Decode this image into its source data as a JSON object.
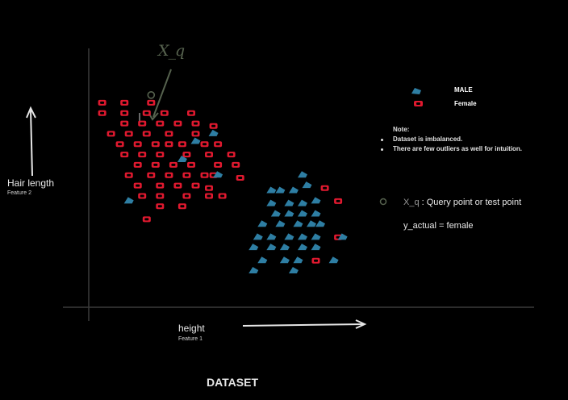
{
  "chart_data": {
    "type": "scatter",
    "title": "DATASET",
    "xlabel": "height",
    "xlabel_sub": "Feature 1",
    "ylabel": "Hair length",
    "ylabel_sub": "Feature 2",
    "legend": [
      {
        "name": "MALE",
        "marker": "triangle",
        "color": "#2e7ea3"
      },
      {
        "name": "Female",
        "marker": "rounded-square",
        "color": "#e0192f"
      }
    ],
    "legend_position": "top-right",
    "grid": false,
    "xlim": [
      0,
      100
    ],
    "ylim": [
      0,
      100
    ],
    "series": [
      {
        "name": "Female",
        "color": "#e0192f",
        "points": [
          [
            3,
            79
          ],
          [
            8,
            79
          ],
          [
            14,
            79
          ],
          [
            3,
            75
          ],
          [
            8,
            75
          ],
          [
            13,
            75
          ],
          [
            17,
            75
          ],
          [
            23,
            75
          ],
          [
            8,
            71
          ],
          [
            12,
            71
          ],
          [
            16,
            71
          ],
          [
            20,
            71
          ],
          [
            24,
            71
          ],
          [
            28,
            70
          ],
          [
            5,
            67
          ],
          [
            9,
            67
          ],
          [
            13,
            67
          ],
          [
            18,
            67
          ],
          [
            24,
            67
          ],
          [
            7,
            63
          ],
          [
            11,
            63
          ],
          [
            15,
            63
          ],
          [
            18,
            63
          ],
          [
            21,
            63
          ],
          [
            26,
            63
          ],
          [
            29,
            63
          ],
          [
            8,
            59
          ],
          [
            12,
            59
          ],
          [
            16,
            59
          ],
          [
            22,
            59
          ],
          [
            27,
            59
          ],
          [
            32,
            59
          ],
          [
            11,
            55
          ],
          [
            15,
            55
          ],
          [
            19,
            55
          ],
          [
            23,
            55
          ],
          [
            29,
            55
          ],
          [
            33,
            55
          ],
          [
            34,
            50
          ],
          [
            9,
            51
          ],
          [
            14,
            51
          ],
          [
            18,
            51
          ],
          [
            22,
            51
          ],
          [
            26,
            51
          ],
          [
            28,
            51
          ],
          [
            11,
            47
          ],
          [
            16,
            47
          ],
          [
            20,
            47
          ],
          [
            24,
            47
          ],
          [
            27,
            46
          ],
          [
            12,
            43
          ],
          [
            16,
            43
          ],
          [
            22,
            43
          ],
          [
            27,
            43
          ],
          [
            30,
            43
          ],
          [
            16,
            39
          ],
          [
            21,
            39
          ],
          [
            13,
            34
          ],
          [
            53,
            46
          ],
          [
            56,
            27
          ],
          [
            51,
            18
          ],
          [
            56,
            41
          ]
        ]
      },
      {
        "name": "MALE",
        "color": "#2e7ea3",
        "points": [
          [
            24,
            64
          ],
          [
            28,
            67
          ],
          [
            29,
            51
          ],
          [
            9,
            41
          ],
          [
            21,
            57
          ],
          [
            48,
            51
          ],
          [
            46,
            45
          ],
          [
            49,
            47
          ],
          [
            43,
            45
          ],
          [
            41,
            45
          ],
          [
            41,
            40
          ],
          [
            45,
            40
          ],
          [
            48,
            40
          ],
          [
            51,
            41
          ],
          [
            42,
            36
          ],
          [
            45,
            36
          ],
          [
            48,
            36
          ],
          [
            51,
            36
          ],
          [
            39,
            32
          ],
          [
            43,
            32
          ],
          [
            47,
            32
          ],
          [
            50,
            32
          ],
          [
            52,
            32
          ],
          [
            38,
            27
          ],
          [
            41,
            27
          ],
          [
            45,
            27
          ],
          [
            48,
            27
          ],
          [
            51,
            27
          ],
          [
            57,
            27
          ],
          [
            37,
            23
          ],
          [
            41,
            23
          ],
          [
            44,
            23
          ],
          [
            48,
            23
          ],
          [
            51,
            23
          ],
          [
            39,
            18
          ],
          [
            44,
            18
          ],
          [
            47,
            18
          ],
          [
            55,
            18
          ],
          [
            37,
            14
          ],
          [
            46,
            14
          ]
        ]
      }
    ],
    "query_point": {
      "label": "X_q",
      "x": 14,
      "y": 82
    }
  },
  "legend_labels": {
    "male": "MALE",
    "female": "Female"
  },
  "note": {
    "title": "Note:",
    "lines": [
      "Dataset is imbalanced.",
      "There are few outliers as well for intuition."
    ]
  },
  "query": {
    "symbol": "X_q",
    "text": " :  Query point or  test point"
  },
  "y_actual": "y_actual = female",
  "handwritten_label": "X_q"
}
